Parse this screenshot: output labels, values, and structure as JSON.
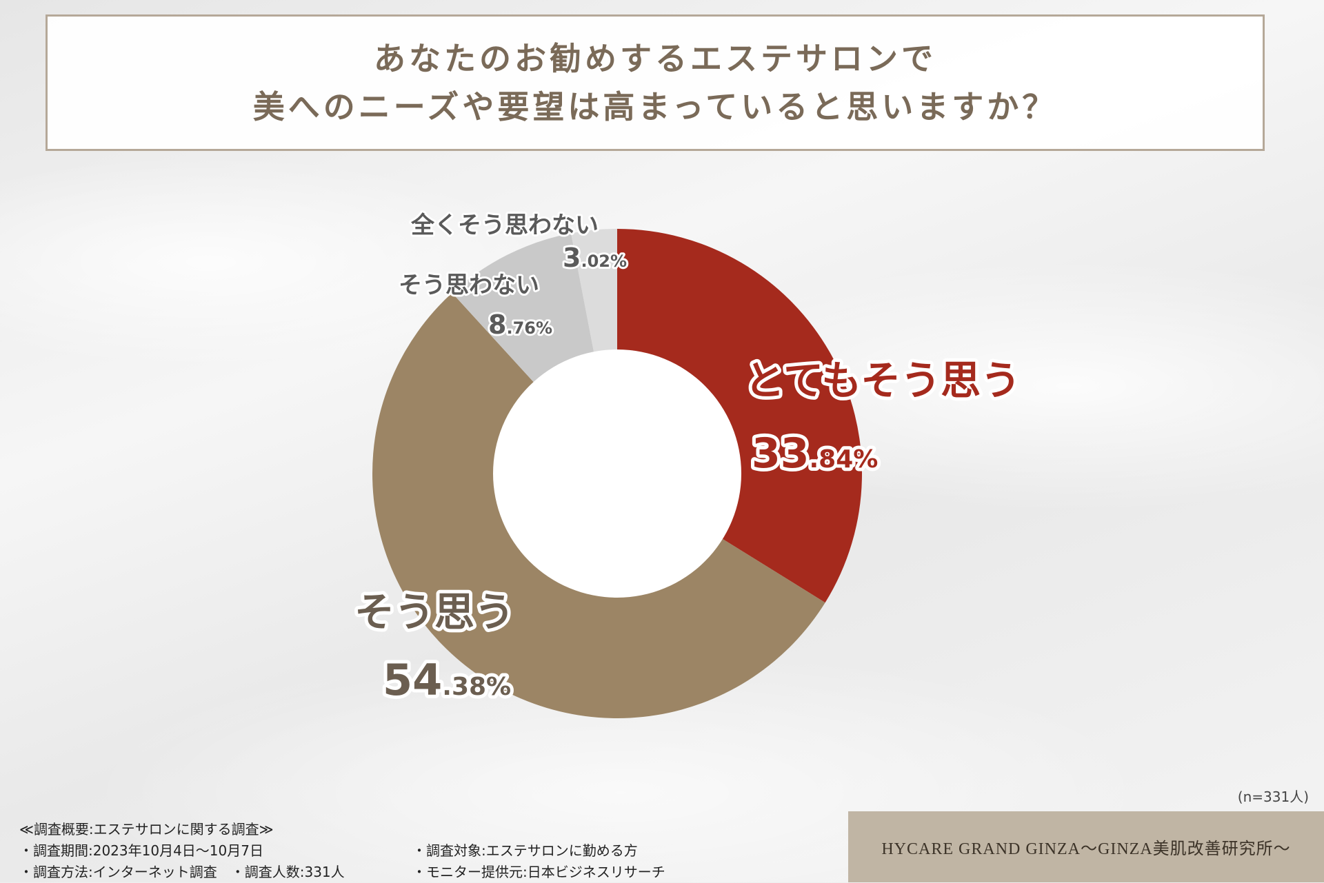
{
  "title": {
    "line1": "あなたのお勧めするエステサロンで",
    "line2": "美へのニーズや要望は高まっていると思いますか？"
  },
  "colors": {
    "very_much": "#a52a1d",
    "somewhat": "#9c8565",
    "not_really": "#c9c9c9",
    "not_at_all": "#dcdcdc",
    "center": "#ffffff"
  },
  "chart_data": {
    "type": "pie",
    "donut": true,
    "slices": [
      {
        "label": "とてもそう思う",
        "int": "33",
        "dec": ".84%",
        "value": 33.84,
        "color": "#a52a1d"
      },
      {
        "label": "そう思う",
        "int": "54",
        "dec": ".38%",
        "value": 54.38,
        "color": "#9c8565"
      },
      {
        "label": "そう思わない",
        "int": "8",
        "dec": ".76%",
        "value": 8.76,
        "color": "#c9c9c9"
      },
      {
        "label": "全くそう思わない",
        "int": "3",
        "dec": ".02%",
        "value": 3.02,
        "color": "#dcdcdc"
      }
    ],
    "n_label": "(n=331人)"
  },
  "footer": {
    "heading": "≪調査概要:エステサロンに関する調査≫",
    "period": "・調査期間:2023年10月4日～10月7日",
    "target": "・調査対象:エステサロンに勤める方",
    "method": "・調査方法:インターネット調査　・調査人数:331人",
    "provider": "・モニター提供元:日本ビジネスリサーチ",
    "brand": "HYCARE GRAND GINZA～GINZA美肌改善研究所～"
  }
}
